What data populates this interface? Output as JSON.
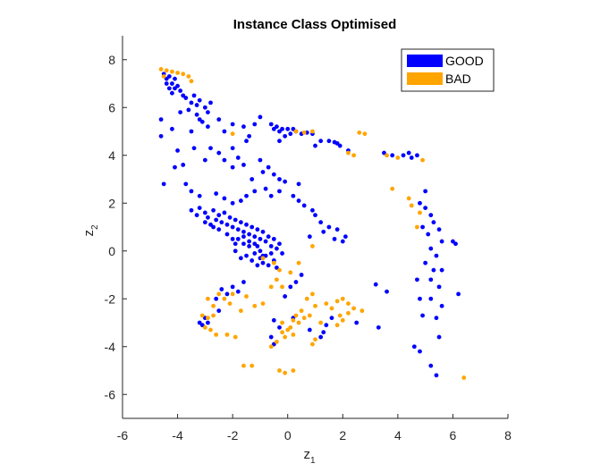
{
  "chart_data": {
    "type": "scatter",
    "title": "Instance Class Optimised",
    "xlabel": "z",
    "xlabel_sub": "1",
    "ylabel": "z",
    "ylabel_sub": "2",
    "xlim": [
      -6,
      8
    ],
    "ylim": [
      -7,
      9
    ],
    "xticks": [
      -6,
      -4,
      -2,
      0,
      2,
      4,
      6,
      8
    ],
    "yticks": [
      -6,
      -4,
      -2,
      0,
      2,
      4,
      6,
      8
    ],
    "grid": false,
    "legend_position": "top-right",
    "series": [
      {
        "name": "GOOD",
        "color": "#0000ff",
        "points": [
          [
            -4.5,
            7.4
          ],
          [
            -4.4,
            7.2
          ],
          [
            -4.3,
            7.3
          ],
          [
            -4.2,
            7.0
          ],
          [
            -4.1,
            7.2
          ],
          [
            -4.0,
            6.9
          ],
          [
            -4.3,
            6.8
          ],
          [
            -4.2,
            6.6
          ],
          [
            -3.9,
            6.7
          ],
          [
            -3.8,
            6.5
          ],
          [
            -4.4,
            7.0
          ],
          [
            -4.1,
            6.8
          ],
          [
            -3.7,
            6.4
          ],
          [
            -3.5,
            6.2
          ],
          [
            -3.4,
            6.5
          ],
          [
            -3.3,
            6.1
          ],
          [
            -3.2,
            6.3
          ],
          [
            -3.0,
            6.0
          ],
          [
            -2.8,
            6.2
          ],
          [
            -2.9,
            5.8
          ],
          [
            -3.3,
            5.7
          ],
          [
            -3.6,
            5.9
          ],
          [
            -3.9,
            5.8
          ],
          [
            -3.1,
            5.4
          ],
          [
            -3.5,
            5.0
          ],
          [
            -3.2,
            5.5
          ],
          [
            -2.9,
            5.2
          ],
          [
            -4.6,
            4.8
          ],
          [
            -4.6,
            5.5
          ],
          [
            -4.2,
            5.1
          ],
          [
            -2.5,
            5.5
          ],
          [
            -2.3,
            5.0
          ],
          [
            -2.0,
            5.3
          ],
          [
            -1.6,
            5.2
          ],
          [
            -1.2,
            5.3
          ],
          [
            -1.0,
            5.6
          ],
          [
            -0.6,
            5.3
          ],
          [
            -0.5,
            5.1
          ],
          [
            -0.4,
            5.2
          ],
          [
            -0.3,
            5.0
          ],
          [
            -0.2,
            5.1
          ],
          [
            0.0,
            5.1
          ],
          [
            0.1,
            4.9
          ],
          [
            0.2,
            5.1
          ],
          [
            0.3,
            5.0
          ],
          [
            0.5,
            4.9
          ],
          [
            0.7,
            4.95
          ],
          [
            0.9,
            4.9
          ],
          [
            -0.1,
            4.8
          ],
          [
            -0.3,
            4.6
          ],
          [
            1.2,
            4.6
          ],
          [
            1.5,
            4.6
          ],
          [
            1.7,
            4.55
          ],
          [
            1.8,
            4.5
          ],
          [
            1.9,
            4.4
          ],
          [
            2.2,
            4.2
          ],
          [
            1.0,
            4.4
          ],
          [
            -1.5,
            4.6
          ],
          [
            -1.4,
            4.8
          ],
          [
            3.5,
            4.1
          ],
          [
            3.8,
            4.0
          ],
          [
            4.2,
            4.0
          ],
          [
            4.4,
            4.1
          ],
          [
            4.5,
            3.9
          ],
          [
            4.7,
            4.0
          ],
          [
            -4.0,
            4.2
          ],
          [
            -3.4,
            4.3
          ],
          [
            -2.8,
            4.3
          ],
          [
            -2.5,
            4.1
          ],
          [
            -2.0,
            4.3
          ],
          [
            -1.8,
            3.9
          ],
          [
            -2.3,
            3.8
          ],
          [
            -3.0,
            3.8
          ],
          [
            -3.8,
            3.6
          ],
          [
            -4.1,
            3.5
          ],
          [
            -2.0,
            3.5
          ],
          [
            -1.6,
            3.6
          ],
          [
            -1.0,
            3.8
          ],
          [
            -0.7,
            3.5
          ],
          [
            -0.9,
            3.3
          ],
          [
            -0.5,
            3.2
          ],
          [
            -0.3,
            3.0
          ],
          [
            -0.1,
            2.9
          ],
          [
            0.4,
            2.8
          ],
          [
            -1.3,
            3.0
          ],
          [
            -4.5,
            2.8
          ],
          [
            -3.7,
            2.8
          ],
          [
            -3.5,
            2.5
          ],
          [
            -3.2,
            2.3
          ],
          [
            -2.6,
            2.4
          ],
          [
            -2.3,
            2.2
          ],
          [
            -2.0,
            2.0
          ],
          [
            -1.7,
            2.1
          ],
          [
            -1.5,
            2.3
          ],
          [
            -1.2,
            2.5
          ],
          [
            -0.8,
            2.6
          ],
          [
            -0.6,
            2.3
          ],
          [
            -0.3,
            2.5
          ],
          [
            0.2,
            2.3
          ],
          [
            0.4,
            2.1
          ],
          [
            0.6,
            1.9
          ],
          [
            0.9,
            1.7
          ],
          [
            1.0,
            1.5
          ],
          [
            1.2,
            1.2
          ],
          [
            1.5,
            1.0
          ],
          [
            1.8,
            0.9
          ],
          [
            2.1,
            0.6
          ],
          [
            2.0,
            0.4
          ],
          [
            1.7,
            0.5
          ],
          [
            1.3,
            0.8
          ],
          [
            0.8,
            0.6
          ],
          [
            -3.5,
            1.7
          ],
          [
            -3.3,
            1.5
          ],
          [
            -3.2,
            1.8
          ],
          [
            -3.0,
            1.6
          ],
          [
            -2.9,
            1.4
          ],
          [
            -2.7,
            1.7
          ],
          [
            -2.6,
            1.3
          ],
          [
            -2.5,
            1.5
          ],
          [
            -2.4,
            1.2
          ],
          [
            -2.3,
            1.6
          ],
          [
            -2.2,
            1.1
          ],
          [
            -2.1,
            1.4
          ],
          [
            -2.0,
            1.0
          ],
          [
            -1.9,
            1.3
          ],
          [
            -1.8,
            0.9
          ],
          [
            -1.7,
            1.2
          ],
          [
            -1.6,
            0.8
          ],
          [
            -1.5,
            1.1
          ],
          [
            -1.4,
            0.7
          ],
          [
            -1.3,
            1.0
          ],
          [
            -1.2,
            0.6
          ],
          [
            -1.1,
            0.9
          ],
          [
            -1.0,
            0.5
          ],
          [
            -0.9,
            0.8
          ],
          [
            -0.8,
            0.4
          ],
          [
            -0.7,
            0.6
          ],
          [
            -0.6,
            0.2
          ],
          [
            -0.5,
            0.5
          ],
          [
            -0.4,
            0.1
          ],
          [
            -0.3,
            0.3
          ],
          [
            -0.2,
            -0.1
          ],
          [
            -1.8,
            0.5
          ],
          [
            -1.6,
            0.3
          ],
          [
            -1.4,
            0.2
          ],
          [
            -1.5,
            -0.2
          ],
          [
            -1.3,
            -0.4
          ],
          [
            -1.2,
            -0.1
          ],
          [
            -1.1,
            0.2
          ],
          [
            -1.0,
            -0.3
          ],
          [
            -0.9,
            -0.5
          ],
          [
            -0.8,
            -0.2
          ],
          [
            -0.7,
            -0.6
          ],
          [
            -0.6,
            -0.1
          ],
          [
            -0.5,
            -0.4
          ],
          [
            -0.4,
            -0.7
          ],
          [
            -1.7,
            -0.3
          ],
          [
            -1.9,
            0.0
          ],
          [
            -1.0,
            0.0
          ],
          [
            -2.8,
            1.1
          ],
          [
            -2.5,
            0.9
          ],
          [
            -2.2,
            0.7
          ],
          [
            -2.0,
            0.5
          ],
          [
            -1.9,
            0.3
          ],
          [
            -3.0,
            1.2
          ],
          [
            -2.7,
            1.0
          ],
          [
            -1.1,
            -0.6
          ],
          [
            -0.9,
            -0.2
          ],
          [
            -1.6,
            0.6
          ],
          [
            -1.4,
            0.4
          ],
          [
            -1.2,
            0.3
          ],
          [
            -2.4,
            -1.6
          ],
          [
            -2.2,
            -1.8
          ],
          [
            -2.0,
            -1.5
          ],
          [
            -1.8,
            -1.7
          ],
          [
            -1.6,
            -1.3
          ],
          [
            -2.6,
            -2.0
          ],
          [
            -2.5,
            -2.5
          ],
          [
            -3.0,
            -2.8
          ],
          [
            -3.2,
            -3.0
          ],
          [
            -3.1,
            -3.1
          ],
          [
            -2.9,
            -3.0
          ],
          [
            0.5,
            -1.0
          ],
          [
            0.3,
            -1.3
          ],
          [
            0.1,
            -1.5
          ],
          [
            -0.1,
            -1.9
          ],
          [
            0.2,
            -2.8
          ],
          [
            -0.5,
            -2.9
          ],
          [
            -0.3,
            -3.2
          ],
          [
            -0.6,
            -3.6
          ],
          [
            -0.5,
            -3.9
          ],
          [
            1.6,
            -2.8
          ],
          [
            1.4,
            -3.1
          ],
          [
            1.3,
            -3.4
          ],
          [
            1.2,
            -3.6
          ],
          [
            0.8,
            -3.3
          ],
          [
            2.5,
            -3.0
          ],
          [
            3.2,
            -1.4
          ],
          [
            3.6,
            -1.7
          ],
          [
            3.3,
            -3.2
          ],
          [
            4.8,
            2.0
          ],
          [
            5.0,
            1.8
          ],
          [
            5.2,
            1.5
          ],
          [
            5.3,
            1.2
          ],
          [
            4.9,
            1.0
          ],
          [
            5.1,
            0.7
          ],
          [
            5.5,
            0.9
          ],
          [
            5.6,
            0.4
          ],
          [
            6.0,
            0.4
          ],
          [
            5.2,
            0.1
          ],
          [
            5.4,
            -0.2
          ],
          [
            5.0,
            -0.5
          ],
          [
            5.3,
            -0.8
          ],
          [
            5.6,
            -0.8
          ],
          [
            4.7,
            -1.2
          ],
          [
            5.2,
            -1.2
          ],
          [
            5.5,
            -1.5
          ],
          [
            4.8,
            -2.0
          ],
          [
            5.2,
            -2.0
          ],
          [
            5.6,
            -2.3
          ],
          [
            4.9,
            -2.7
          ],
          [
            5.4,
            -2.8
          ],
          [
            5.5,
            -3.6
          ],
          [
            4.6,
            -4.0
          ],
          [
            4.8,
            -4.2
          ],
          [
            5.2,
            -4.8
          ],
          [
            5.4,
            -5.2
          ],
          [
            6.1,
            0.3
          ],
          [
            6.2,
            -1.8
          ],
          [
            5.0,
            2.5
          ]
        ]
      },
      {
        "name": "BAD",
        "color": "#ffa500",
        "points": [
          [
            -4.6,
            7.6
          ],
          [
            -4.4,
            7.55
          ],
          [
            -4.2,
            7.5
          ],
          [
            -4.0,
            7.45
          ],
          [
            -3.8,
            7.4
          ],
          [
            -3.6,
            7.3
          ],
          [
            -3.5,
            7.1
          ],
          [
            -4.5,
            7.3
          ],
          [
            -2.0,
            4.9
          ],
          [
            0.3,
            5.0
          ],
          [
            0.6,
            4.95
          ],
          [
            0.9,
            5.0
          ],
          [
            2.2,
            4.1
          ],
          [
            2.4,
            4.0
          ],
          [
            2.6,
            4.95
          ],
          [
            2.8,
            4.9
          ],
          [
            3.6,
            4.0
          ],
          [
            4.0,
            3.9
          ],
          [
            4.9,
            3.8
          ],
          [
            3.8,
            2.6
          ],
          [
            4.4,
            2.2
          ],
          [
            4.5,
            1.9
          ],
          [
            4.8,
            1.6
          ],
          [
            4.7,
            1.0
          ],
          [
            -0.9,
            -0.3
          ],
          [
            -0.5,
            -0.5
          ],
          [
            -0.3,
            -0.8
          ],
          [
            0.1,
            -0.9
          ],
          [
            0.4,
            -0.5
          ],
          [
            0.9,
            0.2
          ],
          [
            -2.5,
            -1.8
          ],
          [
            -2.3,
            -2.0
          ],
          [
            -2.1,
            -2.2
          ],
          [
            -2.0,
            -1.8
          ],
          [
            -1.5,
            -1.9
          ],
          [
            -1.2,
            -2.3
          ],
          [
            -0.9,
            -2.2
          ],
          [
            -0.6,
            -1.5
          ],
          [
            -0.4,
            -1.2
          ],
          [
            -0.2,
            -1.5
          ],
          [
            -2.9,
            -2.0
          ],
          [
            -2.7,
            -2.3
          ],
          [
            -3.1,
            -2.7
          ],
          [
            -2.9,
            -2.8
          ],
          [
            -2.7,
            -2.7
          ],
          [
            -3.0,
            -3.2
          ],
          [
            -2.8,
            -3.3
          ],
          [
            -2.6,
            -3.5
          ],
          [
            -2.2,
            -3.5
          ],
          [
            -1.9,
            -3.6
          ],
          [
            -1.7,
            -2.5
          ],
          [
            0.9,
            -1.8
          ],
          [
            0.7,
            -2.0
          ],
          [
            1.0,
            -2.3
          ],
          [
            1.4,
            -2.2
          ],
          [
            1.8,
            -2.1
          ],
          [
            2.0,
            -2.0
          ],
          [
            2.2,
            -2.2
          ],
          [
            2.4,
            -2.4
          ],
          [
            2.7,
            -2.5
          ],
          [
            0.5,
            -2.5
          ],
          [
            0.3,
            -2.7
          ],
          [
            0.2,
            -2.9
          ],
          [
            0.1,
            -3.2
          ],
          [
            0.0,
            -3.3
          ],
          [
            -0.2,
            -3.4
          ],
          [
            -0.1,
            -3.6
          ],
          [
            0.2,
            -3.5
          ],
          [
            -0.4,
            -3.8
          ],
          [
            -0.6,
            -4.0
          ],
          [
            0.4,
            -3.0
          ],
          [
            0.6,
            -2.8
          ],
          [
            0.8,
            -2.7
          ],
          [
            -0.2,
            -3.0
          ],
          [
            1.6,
            -2.4
          ],
          [
            1.9,
            -2.7
          ],
          [
            2.0,
            -2.9
          ],
          [
            1.8,
            -3.1
          ],
          [
            2.2,
            -2.6
          ],
          [
            1.2,
            -3.0
          ],
          [
            1.0,
            -3.7
          ],
          [
            0.9,
            -3.9
          ],
          [
            -1.6,
            -4.8
          ],
          [
            -1.3,
            -4.8
          ],
          [
            -0.3,
            -5.0
          ],
          [
            -0.1,
            -5.1
          ],
          [
            0.2,
            -5.0
          ],
          [
            6.4,
            -5.3
          ]
        ]
      }
    ]
  }
}
